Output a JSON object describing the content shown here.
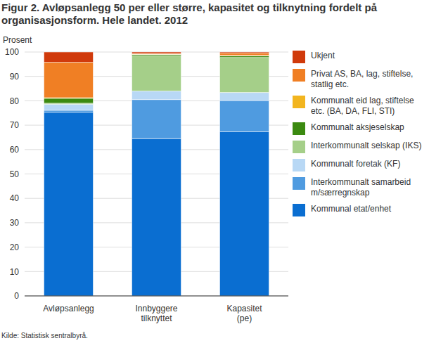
{
  "chart_data": {
    "type": "bar",
    "stacked": true,
    "title": "Figur 2. Avløpsanlegg 50 per eller større, kapasitet og tilknytning fordelt på organisasjonsform. Hele landet. 2012",
    "y_label": "Prosent",
    "source": "Kilde: Statistisk sentralbyrå.",
    "categories": [
      "Avløpsanlegg",
      "Innbyggere tilknyttet",
      "Kapasitet (pe)"
    ],
    "ylim": [
      0,
      100
    ],
    "yticks": [
      0,
      10,
      20,
      30,
      40,
      50,
      60,
      70,
      80,
      90,
      100
    ],
    "grid": true,
    "legend": "right",
    "series": [
      {
        "name": "Kommunal etat/enhet",
        "color": "#0a6ed1",
        "values": [
          75.3,
          64.5,
          67.3
        ]
      },
      {
        "name": "Interkommunalt samarbeid m/særregnskap",
        "color": "#4f9be0",
        "values": [
          0.8,
          16.0,
          12.8
        ]
      },
      {
        "name": "Kommunalt foretak (KF)",
        "color": "#b8d8f5",
        "values": [
          2.5,
          3.5,
          3.3
        ]
      },
      {
        "name": "Interkommunalt selskap (IKS)",
        "color": "#a5cf89",
        "values": [
          0.4,
          14.5,
          14.4
        ]
      },
      {
        "name": "Kommunalt aksjeselskap",
        "color": "#3b8a10",
        "values": [
          2.0,
          0.5,
          0.6
        ]
      },
      {
        "name": "Kommunalt eid lag, stiftelse etc. (BA, DA, FLI, STI)",
        "color": "#f2b51f",
        "values": [
          0.3,
          0.1,
          0.2
        ]
      },
      {
        "name": "Privat AS, BA, lag, stiftelse, statlig etc.",
        "color": "#f07f24",
        "values": [
          14.5,
          0.3,
          1.0
        ]
      },
      {
        "name": "Ukjent",
        "color": "#d03a0b",
        "values": [
          4.2,
          0.6,
          0.4
        ]
      }
    ]
  }
}
